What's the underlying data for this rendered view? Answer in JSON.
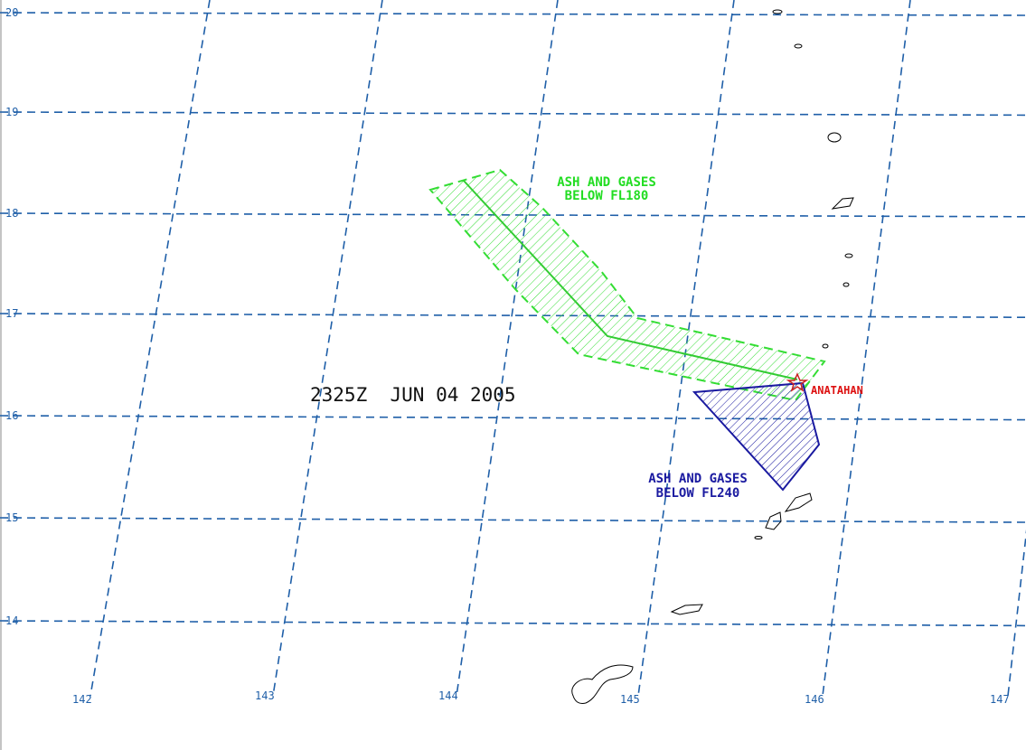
{
  "map": {
    "timestamp": "2325Z  JUN 04 2005",
    "volcano": "ANATAHAN",
    "areas": [
      {
        "lines": [
          "ASH AND GASES",
          "BELOW FL180"
        ]
      },
      {
        "lines": [
          "ASH AND GASES",
          "BELOW FL240"
        ]
      }
    ]
  },
  "grid": {
    "latitudes": [
      20,
      19,
      18,
      17,
      16,
      15,
      14
    ],
    "longitudes": [
      142,
      143,
      144,
      145,
      146,
      147
    ]
  }
}
